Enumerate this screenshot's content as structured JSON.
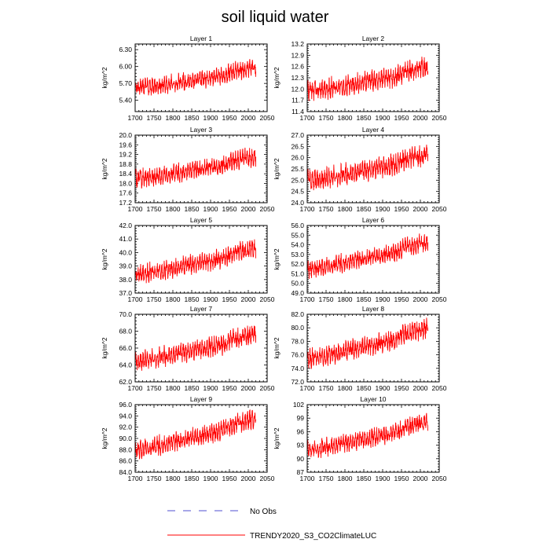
{
  "title": "soil liquid water",
  "legend": {
    "placement": "bottom-center",
    "entries": [
      {
        "label": "No Obs",
        "color": "#4f4fd0",
        "style": "dashed"
      },
      {
        "label": "TRENDY2020_S3_CO2ClimateLUC",
        "color": "#ff0000",
        "style": "solid"
      }
    ]
  },
  "chart_data": [
    {
      "type": "line",
      "title": "Layer 1",
      "xlabel": "",
      "ylabel": "kg/m^2",
      "xlim": [
        1700,
        2050
      ],
      "xticks": [
        1700,
        1750,
        1800,
        1850,
        1900,
        1950,
        2000,
        2050
      ],
      "ylim": [
        5.2,
        6.4
      ],
      "yticks": [
        5.4,
        5.7,
        6.0,
        6.3
      ],
      "ytick_labels": [
        "5.40",
        "5.70",
        "6.00",
        "6.30"
      ],
      "series": [
        {
          "name": "TRENDY2020_S3_CO2ClimateLUC",
          "color": "#ff0000",
          "x_range": [
            1700,
            2020
          ],
          "trend_start": 5.62,
          "trend_end": 5.93,
          "amplitude": 0.2
        }
      ]
    },
    {
      "type": "line",
      "title": "Layer 2",
      "xlabel": "",
      "ylabel": "kg/m^2",
      "xlim": [
        1700,
        2050
      ],
      "xticks": [
        1700,
        1750,
        1800,
        1850,
        1900,
        1950,
        2000,
        2050
      ],
      "ylim": [
        11.4,
        13.2
      ],
      "yticks": [
        11.4,
        11.7,
        12.0,
        12.3,
        12.6,
        12.9,
        13.2
      ],
      "ytick_labels": [
        "11.4",
        "11.7",
        "12.0",
        "12.3",
        "12.6",
        "12.9",
        "13.2"
      ],
      "series": [
        {
          "name": "TRENDY2020_S3_CO2ClimateLUC",
          "color": "#ff0000",
          "x_range": [
            1700,
            2020
          ],
          "trend_start": 11.95,
          "trend_end": 12.5,
          "amplitude": 0.35
        }
      ]
    },
    {
      "type": "line",
      "title": "Layer 3",
      "xlabel": "",
      "ylabel": "kg/m^2",
      "xlim": [
        1700,
        2050
      ],
      "xticks": [
        1700,
        1750,
        1800,
        1850,
        1900,
        1950,
        2000,
        2050
      ],
      "ylim": [
        17.2,
        20.0
      ],
      "yticks": [
        17.2,
        17.6,
        18.0,
        18.4,
        18.8,
        19.2,
        19.6,
        20.0
      ],
      "ytick_labels": [
        "17.2",
        "17.6",
        "18.0",
        "18.4",
        "18.8",
        "19.2",
        "19.6",
        "20.0"
      ],
      "series": [
        {
          "name": "TRENDY2020_S3_CO2ClimateLUC",
          "color": "#ff0000",
          "x_range": [
            1700,
            2020
          ],
          "trend_start": 18.2,
          "trend_end": 19.0,
          "amplitude": 0.5
        }
      ]
    },
    {
      "type": "line",
      "title": "Layer 4",
      "xlabel": "",
      "ylabel": "kg/m^2",
      "xlim": [
        1700,
        2050
      ],
      "xticks": [
        1700,
        1750,
        1800,
        1850,
        1900,
        1950,
        2000,
        2050
      ],
      "ylim": [
        24.0,
        27.0
      ],
      "yticks": [
        24.0,
        24.5,
        25.0,
        25.5,
        26.0,
        26.5,
        27.0
      ],
      "ytick_labels": [
        "24.0",
        "24.5",
        "25.0",
        "25.5",
        "26.0",
        "26.5",
        "27.0"
      ],
      "series": [
        {
          "name": "TRENDY2020_S3_CO2ClimateLUC",
          "color": "#ff0000",
          "x_range": [
            1700,
            2020
          ],
          "trend_start": 25.0,
          "trend_end": 26.0,
          "amplitude": 0.6
        }
      ]
    },
    {
      "type": "line",
      "title": "Layer 5",
      "xlabel": "",
      "ylabel": "kg/m^2",
      "xlim": [
        1700,
        2050
      ],
      "xticks": [
        1700,
        1750,
        1800,
        1850,
        1900,
        1950,
        2000,
        2050
      ],
      "ylim": [
        37.0,
        42.0
      ],
      "yticks": [
        37.0,
        38.0,
        39.0,
        40.0,
        41.0,
        42.0
      ],
      "ytick_labels": [
        "37.0",
        "38.0",
        "39.0",
        "40.0",
        "41.0",
        "42.0"
      ],
      "series": [
        {
          "name": "TRENDY2020_S3_CO2ClimateLUC",
          "color": "#ff0000",
          "x_range": [
            1700,
            2020
          ],
          "trend_start": 38.4,
          "trend_end": 40.1,
          "amplitude": 0.9
        }
      ]
    },
    {
      "type": "line",
      "title": "Layer 6",
      "xlabel": "",
      "ylabel": "kg/m^2",
      "xlim": [
        1700,
        2050
      ],
      "xticks": [
        1700,
        1750,
        1800,
        1850,
        1900,
        1950,
        2000,
        2050
      ],
      "ylim": [
        49.0,
        56.0
      ],
      "yticks": [
        49.0,
        50.0,
        51.0,
        52.0,
        53.0,
        54.0,
        55.0,
        56.0
      ],
      "ytick_labels": [
        "49.0",
        "50.0",
        "51.0",
        "52.0",
        "53.0",
        "54.0",
        "55.0",
        "56.0"
      ],
      "series": [
        {
          "name": "TRENDY2020_S3_CO2ClimateLUC",
          "color": "#ff0000",
          "x_range": [
            1700,
            2020
          ],
          "trend_start": 51.5,
          "trend_end": 54.0,
          "amplitude": 1.2
        }
      ]
    },
    {
      "type": "line",
      "title": "Layer 7",
      "xlabel": "",
      "ylabel": "kg/m^2",
      "xlim": [
        1700,
        2050
      ],
      "xticks": [
        1700,
        1750,
        1800,
        1850,
        1900,
        1950,
        2000,
        2050
      ],
      "ylim": [
        62.0,
        70.0
      ],
      "yticks": [
        62.0,
        64.0,
        66.0,
        68.0,
        70.0
      ],
      "ytick_labels": [
        "62.0",
        "64.0",
        "66.0",
        "68.0",
        "70.0"
      ],
      "series": [
        {
          "name": "TRENDY2020_S3_CO2ClimateLUC",
          "color": "#ff0000",
          "x_range": [
            1700,
            2020
          ],
          "trend_start": 64.5,
          "trend_end": 67.3,
          "amplitude": 1.5
        }
      ]
    },
    {
      "type": "line",
      "title": "Layer 8",
      "xlabel": "",
      "ylabel": "kg/m^2",
      "xlim": [
        1700,
        2050
      ],
      "xticks": [
        1700,
        1750,
        1800,
        1850,
        1900,
        1950,
        2000,
        2050
      ],
      "ylim": [
        72.0,
        82.0
      ],
      "yticks": [
        72.0,
        74.0,
        76.0,
        78.0,
        80.0,
        82.0
      ],
      "ytick_labels": [
        "72.0",
        "74.0",
        "76.0",
        "78.0",
        "80.0",
        "82.0"
      ],
      "series": [
        {
          "name": "TRENDY2020_S3_CO2ClimateLUC",
          "color": "#ff0000",
          "x_range": [
            1700,
            2020
          ],
          "trend_start": 75.5,
          "trend_end": 79.5,
          "amplitude": 1.9
        }
      ]
    },
    {
      "type": "line",
      "title": "Layer 9",
      "xlabel": "",
      "ylabel": "kg/m^2",
      "xlim": [
        1700,
        2050
      ],
      "xticks": [
        1700,
        1750,
        1800,
        1850,
        1900,
        1950,
        2000,
        2050
      ],
      "ylim": [
        84.0,
        96.0
      ],
      "yticks": [
        84.0,
        86.0,
        88.0,
        90.0,
        92.0,
        94.0,
        96.0
      ],
      "ytick_labels": [
        "84.0",
        "86.0",
        "88.0",
        "90.0",
        "92.0",
        "94.0",
        "96.0"
      ],
      "series": [
        {
          "name": "TRENDY2020_S3_CO2ClimateLUC",
          "color": "#ff0000",
          "x_range": [
            1700,
            2020
          ],
          "trend_start": 88.0,
          "trend_end": 93.0,
          "amplitude": 2.2
        }
      ]
    },
    {
      "type": "line",
      "title": "Layer 10",
      "xlabel": "",
      "ylabel": "kg/m^2",
      "xlim": [
        1700,
        2050
      ],
      "xticks": [
        1700,
        1750,
        1800,
        1850,
        1900,
        1950,
        2000,
        2050
      ],
      "ylim": [
        87,
        102
      ],
      "yticks": [
        87,
        90,
        93,
        96,
        99,
        102
      ],
      "ytick_labels": [
        "87",
        "90",
        "93",
        "96",
        "99",
        "102"
      ],
      "series": [
        {
          "name": "TRENDY2020_S3_CO2ClimateLUC",
          "color": "#ff0000",
          "x_range": [
            1700,
            2020
          ],
          "trend_start": 92.0,
          "trend_end": 97.5,
          "amplitude": 2.6
        }
      ]
    }
  ]
}
